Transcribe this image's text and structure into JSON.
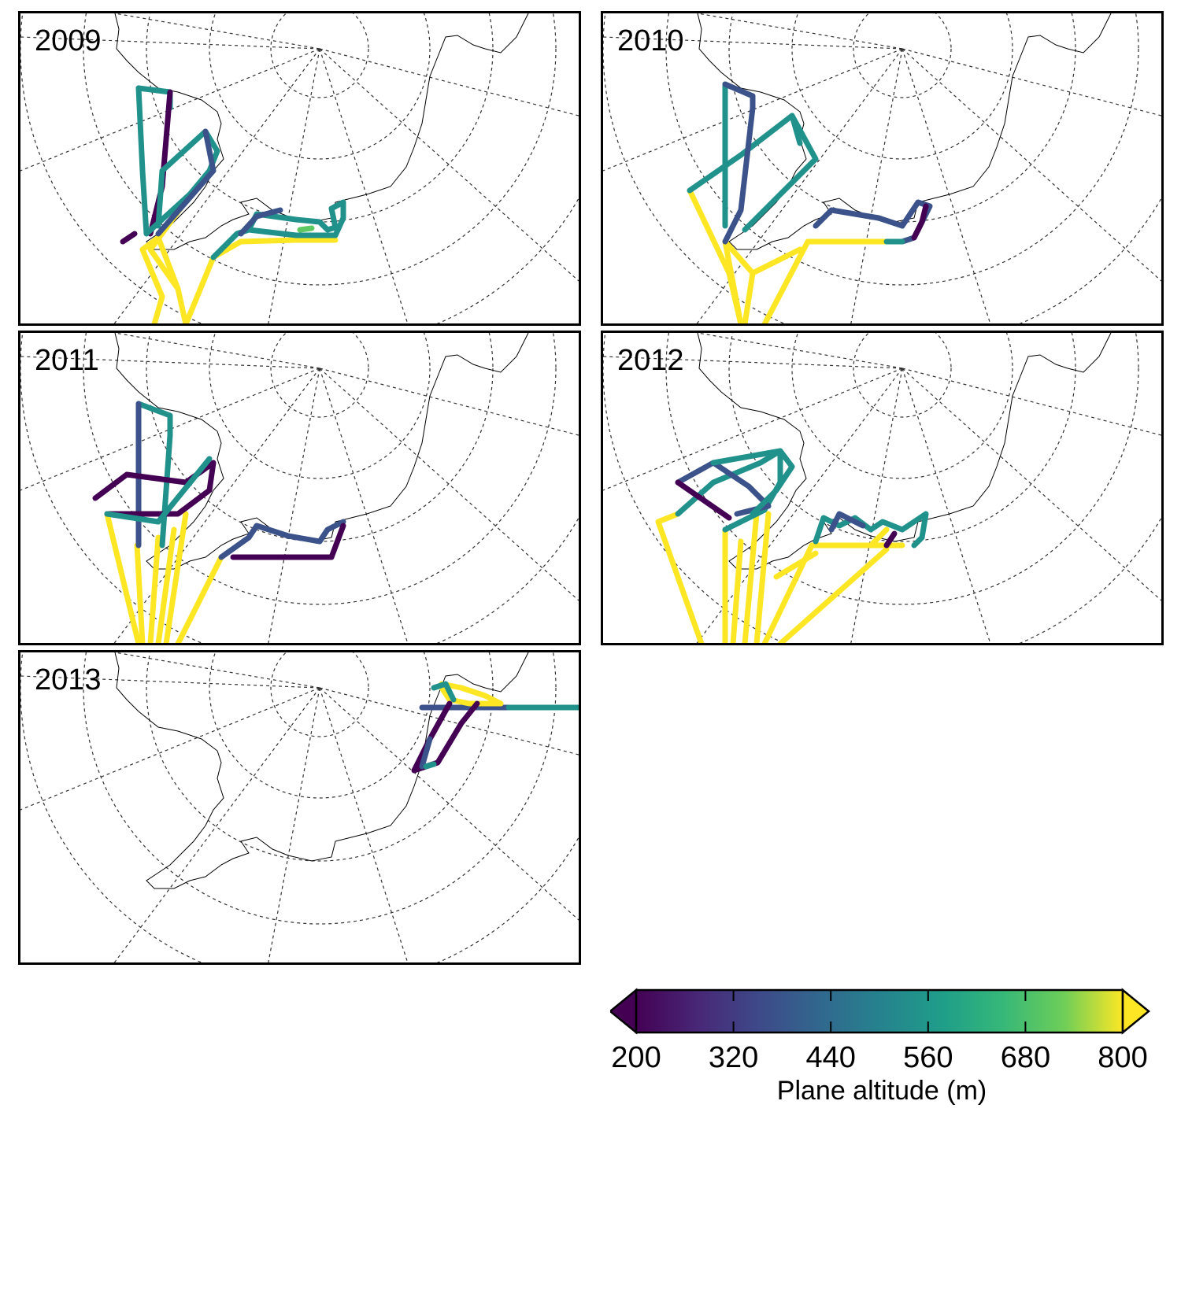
{
  "panels": [
    {
      "id": "p2009",
      "label": "2009"
    },
    {
      "id": "p2010",
      "label": "2010"
    },
    {
      "id": "p2011",
      "label": "2011"
    },
    {
      "id": "p2012",
      "label": "2012"
    },
    {
      "id": "p2013",
      "label": "2013"
    }
  ],
  "colorbar": {
    "title": "Plane altitude (m)",
    "ticks": [
      "200",
      "320",
      "440",
      "560",
      "680",
      "800"
    ],
    "min": 200,
    "max": 800,
    "extend": "both",
    "colormap": "viridis",
    "colors": [
      "#440154",
      "#3b528b",
      "#21918c",
      "#5ec962",
      "#fde725"
    ]
  }
}
